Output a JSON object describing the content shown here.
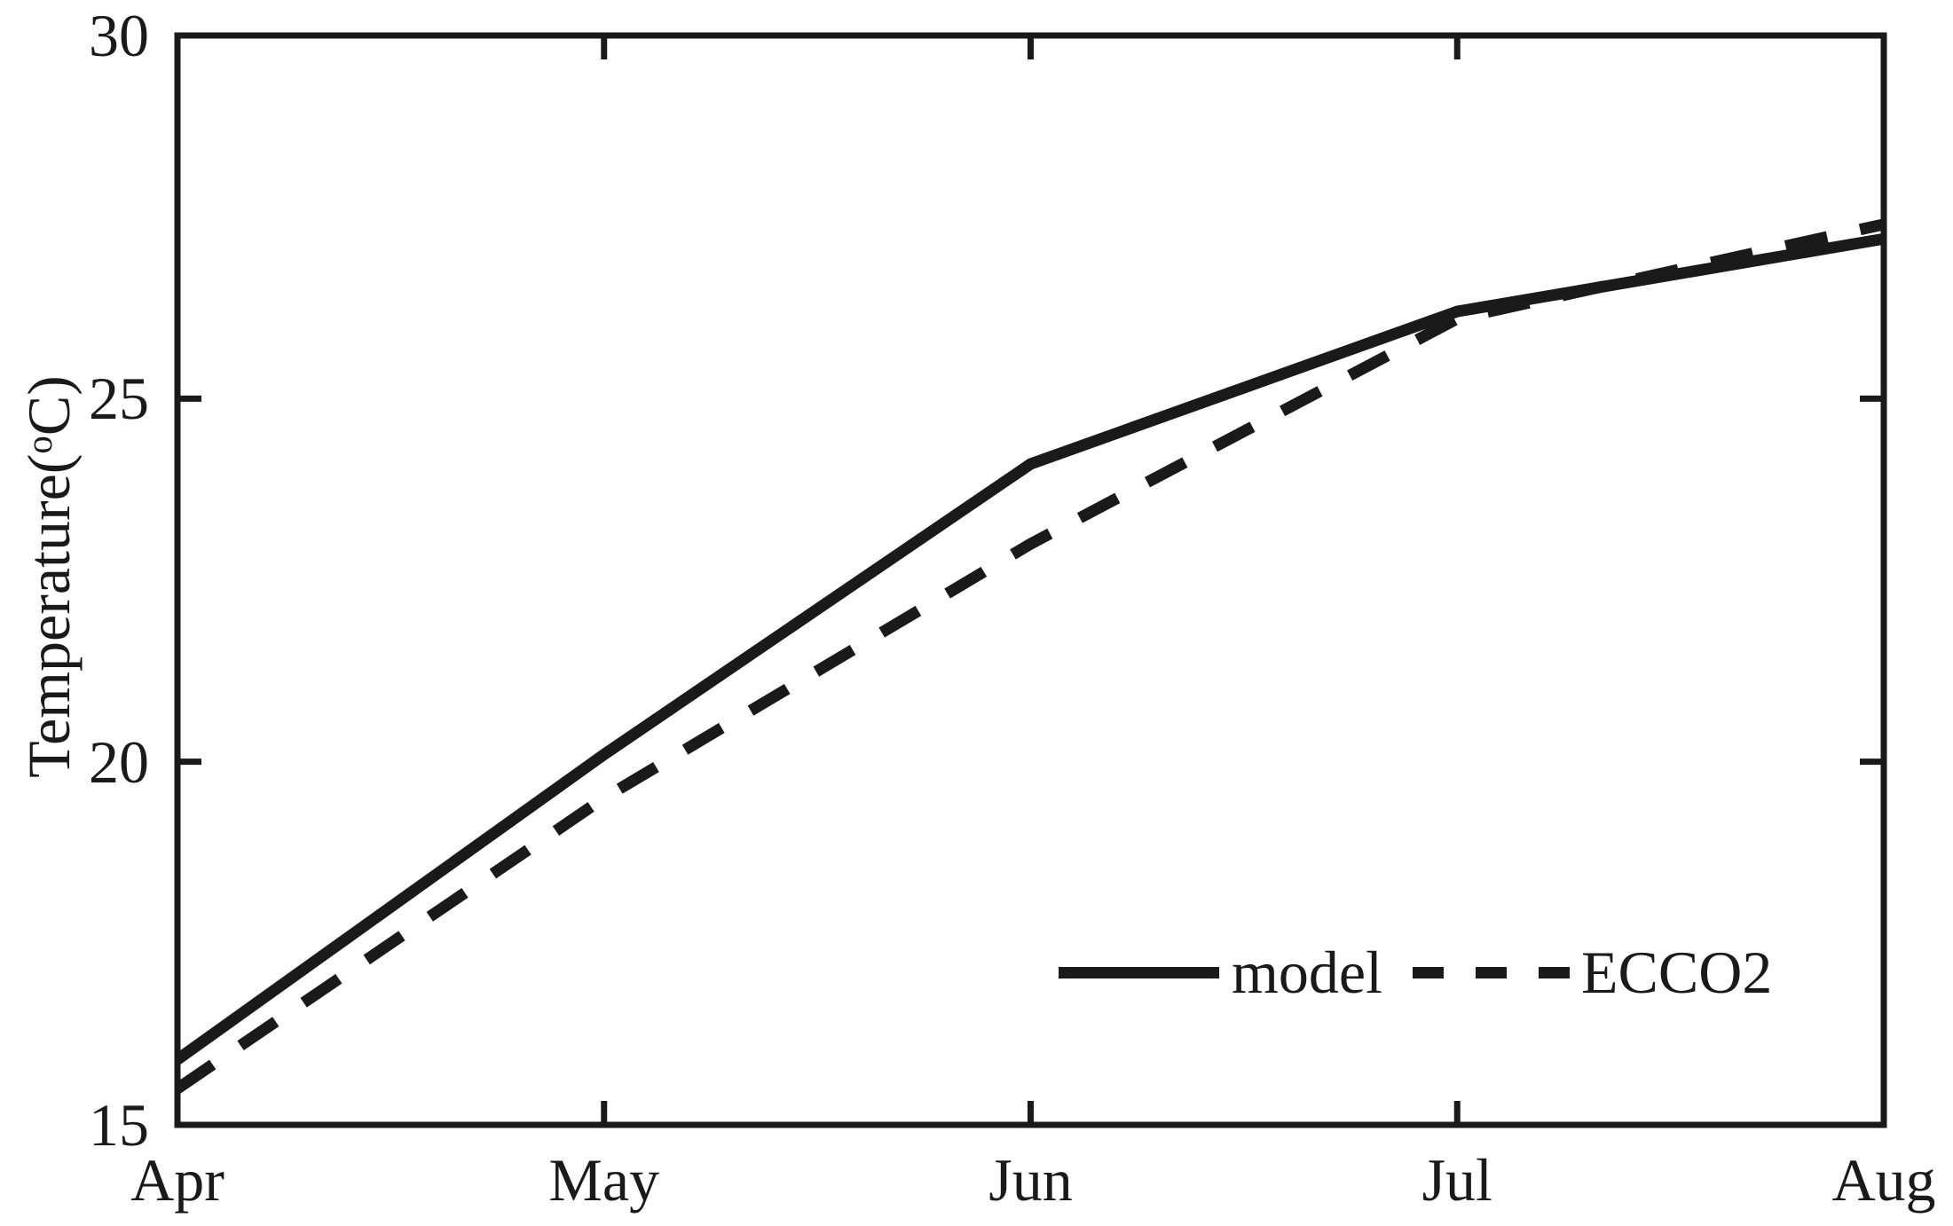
{
  "figure": {
    "background": "#ffffff",
    "ink_color": "#1a1a1a"
  },
  "chart_data": {
    "type": "line",
    "title": "",
    "xlabel": "",
    "ylabel": "Temperature(°C)",
    "ylabel_parts": {
      "prefix": "Temperature(",
      "degree": "o",
      "suffix": "C)"
    },
    "categories": [
      "Apr",
      "May",
      "Jun",
      "Jul",
      "Aug"
    ],
    "y_ticks": [
      "15",
      "20",
      "25",
      "30"
    ],
    "y_tick_values": [
      15,
      20,
      25,
      30
    ],
    "ylim": [
      15,
      30
    ],
    "grid": false,
    "box": true,
    "tick_direction": "in",
    "legend_position": "inside-lower-right",
    "series": [
      {
        "name": "model",
        "style": "solid",
        "color": "#1a1a1a",
        "values": [
          15.9,
          20.1,
          24.1,
          26.2,
          27.2
        ]
      },
      {
        "name": "ECCO2",
        "style": "dashed",
        "color": "#1a1a1a",
        "values": [
          15.5,
          19.5,
          23.0,
          26.1,
          27.4
        ]
      }
    ]
  }
}
